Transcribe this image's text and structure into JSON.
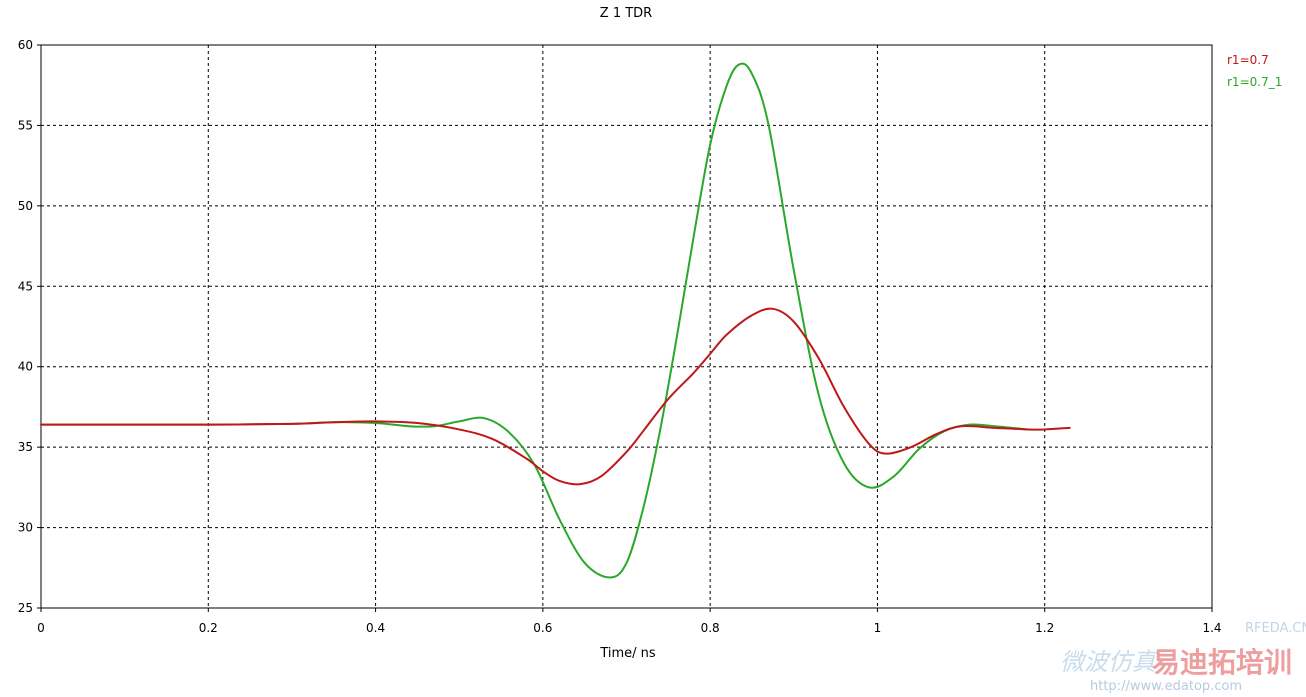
{
  "chart_data": {
    "type": "line",
    "title": "Z 1 TDR",
    "xlabel": "Time/ ns",
    "ylabel": "",
    "xlim": [
      0,
      1.4
    ],
    "ylim": [
      25,
      60
    ],
    "xticks": [
      "0",
      "0.2",
      "0.4",
      "0.6",
      "0.8",
      "1",
      "1.2",
      "1.4"
    ],
    "yticks": [
      "60",
      "55",
      "50",
      "45",
      "40",
      "35",
      "30",
      "25"
    ],
    "grid": true,
    "legend_position": "right",
    "series": [
      {
        "name": "r1=0.7",
        "color": "#c01818",
        "x": [
          0,
          0.1,
          0.2,
          0.3,
          0.35,
          0.4,
          0.45,
          0.5,
          0.54,
          0.58,
          0.6,
          0.62,
          0.645,
          0.67,
          0.7,
          0.72,
          0.75,
          0.78,
          0.8,
          0.82,
          0.85,
          0.875,
          0.9,
          0.93,
          0.96,
          0.99,
          1.01,
          1.04,
          1.07,
          1.1,
          1.14,
          1.18,
          1.2,
          1.23
        ],
        "y": [
          36.4,
          36.4,
          36.4,
          36.45,
          36.55,
          36.6,
          36.5,
          36.1,
          35.5,
          34.3,
          33.5,
          32.9,
          32.7,
          33.2,
          34.7,
          36.0,
          38.0,
          39.6,
          40.8,
          42.0,
          43.2,
          43.6,
          42.8,
          40.5,
          37.5,
          35.2,
          34.6,
          35.0,
          35.8,
          36.3,
          36.2,
          36.1,
          36.1,
          36.2
        ]
      },
      {
        "name": "r1=0.7_1",
        "color": "#2aa82a",
        "x": [
          0,
          0.1,
          0.2,
          0.3,
          0.35,
          0.4,
          0.44,
          0.47,
          0.5,
          0.53,
          0.56,
          0.59,
          0.62,
          0.65,
          0.68,
          0.7,
          0.72,
          0.74,
          0.76,
          0.78,
          0.8,
          0.82,
          0.835,
          0.85,
          0.87,
          0.9,
          0.93,
          0.96,
          0.99,
          1.02,
          1.05,
          1.08,
          1.11,
          1.14,
          1.18
        ],
        "y": [
          36.4,
          36.4,
          36.4,
          36.45,
          36.55,
          36.5,
          36.3,
          36.3,
          36.6,
          36.8,
          35.9,
          33.9,
          30.5,
          27.8,
          26.9,
          27.8,
          31.2,
          36.0,
          41.8,
          48.0,
          53.8,
          57.5,
          58.8,
          58.2,
          55.0,
          46.0,
          38.2,
          34.0,
          32.5,
          33.2,
          34.9,
          36.0,
          36.4,
          36.3,
          36.1
        ]
      }
    ]
  },
  "watermark": {
    "text1": "RFEDA.CN",
    "text2": "微波仿真",
    "brand": "易迪拓培训",
    "url": "http://www.edatop.com"
  }
}
